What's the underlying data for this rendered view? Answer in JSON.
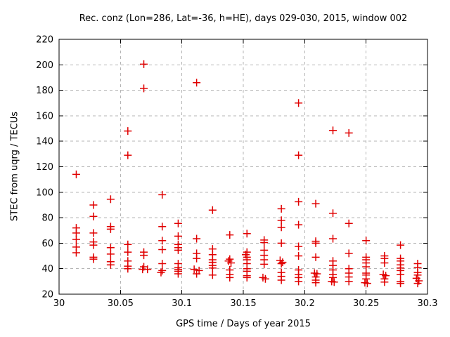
{
  "chart_data": {
    "type": "scatter",
    "title": "Rec. conz (Lon=286, Lat=-36, h=HE), days 029-030, 2015, window 002",
    "xlabel": "GPS time / Days of year 2015",
    "ylabel": "STEC from uqrg / TECUs",
    "xlim": [
      30,
      30.3
    ],
    "ylim": [
      20,
      220
    ],
    "xticks": {
      "values": [
        30,
        30.05,
        30.1,
        30.15,
        30.2,
        30.25,
        30.3
      ],
      "labels": [
        "30",
        "30.05",
        "30.1",
        "30.15",
        "30.2",
        "30.25",
        "30.3"
      ]
    },
    "yticks": {
      "values": [
        20,
        40,
        60,
        80,
        100,
        120,
        140,
        160,
        180,
        200,
        220
      ],
      "labels": [
        "20",
        "40",
        "60",
        "80",
        "100",
        "120",
        "140",
        "160",
        "180",
        "200",
        "220"
      ]
    },
    "grid": true,
    "legend": "none",
    "marker": {
      "shape": "plus",
      "color": "#e00000",
      "size": 11
    },
    "colors": {
      "marker": "#e00000",
      "grid": "#b4b4b4",
      "border": "#000000",
      "background": "#ffffff",
      "text": "#000000"
    },
    "points": [
      [
        30.014,
        114
      ],
      [
        30.014,
        72
      ],
      [
        30.014,
        68
      ],
      [
        30.014,
        63
      ],
      [
        30.014,
        57
      ],
      [
        30.014,
        52.5
      ],
      [
        30.028,
        90
      ],
      [
        30.028,
        81
      ],
      [
        30.028,
        68
      ],
      [
        30.028,
        61
      ],
      [
        30.028,
        58.5
      ],
      [
        30.028,
        49
      ],
      [
        30.028,
        47.5
      ],
      [
        30.042,
        94.5
      ],
      [
        30.042,
        73
      ],
      [
        30.042,
        71
      ],
      [
        30.042,
        56.5
      ],
      [
        30.042,
        51.5
      ],
      [
        30.042,
        45.5
      ],
      [
        30.042,
        43
      ],
      [
        30.056,
        148
      ],
      [
        30.056,
        129
      ],
      [
        30.056,
        59
      ],
      [
        30.056,
        53
      ],
      [
        30.056,
        46
      ],
      [
        30.056,
        42
      ],
      [
        30.056,
        40
      ],
      [
        30.069,
        200.5
      ],
      [
        30.069,
        181.5
      ],
      [
        30.069,
        53
      ],
      [
        30.069,
        50.5
      ],
      [
        30.069,
        41.5
      ],
      [
        30.068,
        39.5
      ],
      [
        30.072,
        39.5
      ],
      [
        30.084,
        98
      ],
      [
        30.084,
        73
      ],
      [
        30.084,
        62
      ],
      [
        30.084,
        55
      ],
      [
        30.084,
        44
      ],
      [
        30.084,
        38.5
      ],
      [
        30.083,
        37
      ],
      [
        30.097,
        75.5
      ],
      [
        30.097,
        65.5
      ],
      [
        30.097,
        59
      ],
      [
        30.097,
        56.5
      ],
      [
        30.097,
        54.5
      ],
      [
        30.097,
        44
      ],
      [
        30.097,
        41
      ],
      [
        30.097,
        39.5
      ],
      [
        30.097,
        38
      ],
      [
        30.097,
        36
      ],
      [
        30.112,
        186
      ],
      [
        30.112,
        63.5
      ],
      [
        30.112,
        52
      ],
      [
        30.112,
        48
      ],
      [
        30.11,
        39.5
      ],
      [
        30.114,
        38.5
      ],
      [
        30.112,
        36
      ],
      [
        30.125,
        86
      ],
      [
        30.125,
        55.5
      ],
      [
        30.125,
        51
      ],
      [
        30.125,
        47
      ],
      [
        30.125,
        45
      ],
      [
        30.125,
        42.5
      ],
      [
        30.125,
        40.5
      ],
      [
        30.125,
        35
      ],
      [
        30.139,
        66.5
      ],
      [
        30.139,
        47.5
      ],
      [
        30.138,
        46
      ],
      [
        30.14,
        44.5
      ],
      [
        30.139,
        39
      ],
      [
        30.139,
        35.5
      ],
      [
        30.139,
        33
      ],
      [
        30.153,
        67.5
      ],
      [
        30.153,
        53
      ],
      [
        30.152,
        51
      ],
      [
        30.153,
        49
      ],
      [
        30.153,
        47
      ],
      [
        30.153,
        44
      ],
      [
        30.153,
        40
      ],
      [
        30.153,
        38
      ],
      [
        30.153,
        34.5
      ],
      [
        30.153,
        33
      ],
      [
        30.167,
        62.5
      ],
      [
        30.167,
        60.5
      ],
      [
        30.167,
        54.5
      ],
      [
        30.167,
        50.5
      ],
      [
        30.167,
        47
      ],
      [
        30.167,
        43.5
      ],
      [
        30.166,
        33
      ],
      [
        30.168,
        32
      ],
      [
        30.181,
        87
      ],
      [
        30.181,
        78
      ],
      [
        30.181,
        72.5
      ],
      [
        30.181,
        60
      ],
      [
        30.18,
        46.5
      ],
      [
        30.182,
        45
      ],
      [
        30.181,
        44
      ],
      [
        30.181,
        37
      ],
      [
        30.181,
        34
      ],
      [
        30.181,
        31
      ],
      [
        30.195,
        170
      ],
      [
        30.195,
        129
      ],
      [
        30.195,
        92.5
      ],
      [
        30.195,
        74.5
      ],
      [
        30.195,
        57.5
      ],
      [
        30.195,
        50
      ],
      [
        30.195,
        39
      ],
      [
        30.195,
        35.5
      ],
      [
        30.195,
        33
      ],
      [
        30.195,
        30
      ],
      [
        30.209,
        91
      ],
      [
        30.209,
        61.5
      ],
      [
        30.209,
        60
      ],
      [
        30.209,
        49
      ],
      [
        30.208,
        36.5
      ],
      [
        30.21,
        36
      ],
      [
        30.209,
        33.5
      ],
      [
        30.209,
        31
      ],
      [
        30.209,
        29
      ],
      [
        30.223,
        148.5
      ],
      [
        30.223,
        83.5
      ],
      [
        30.223,
        63.5
      ],
      [
        30.223,
        46
      ],
      [
        30.223,
        42.5
      ],
      [
        30.223,
        39
      ],
      [
        30.223,
        35.5
      ],
      [
        30.223,
        33
      ],
      [
        30.222,
        30
      ],
      [
        30.224,
        29.5
      ],
      [
        30.236,
        146.5
      ],
      [
        30.236,
        75.5
      ],
      [
        30.236,
        52
      ],
      [
        30.236,
        40
      ],
      [
        30.236,
        36.5
      ],
      [
        30.236,
        33.5
      ],
      [
        30.236,
        30
      ],
      [
        30.25,
        62
      ],
      [
        30.25,
        49
      ],
      [
        30.25,
        47
      ],
      [
        30.25,
        44.5
      ],
      [
        30.25,
        41.5
      ],
      [
        30.25,
        36.5
      ],
      [
        30.25,
        35
      ],
      [
        30.25,
        32
      ],
      [
        30.249,
        29
      ],
      [
        30.251,
        28.5
      ],
      [
        30.265,
        50
      ],
      [
        30.265,
        48
      ],
      [
        30.265,
        44.5
      ],
      [
        30.264,
        35.5
      ],
      [
        30.266,
        34.5
      ],
      [
        30.265,
        32
      ],
      [
        30.265,
        29.5
      ],
      [
        30.278,
        58.5
      ],
      [
        30.278,
        48
      ],
      [
        30.278,
        46
      ],
      [
        30.278,
        43
      ],
      [
        30.278,
        40.5
      ],
      [
        30.278,
        38.5
      ],
      [
        30.278,
        35.5
      ],
      [
        30.278,
        30
      ],
      [
        30.278,
        28.5
      ],
      [
        30.292,
        44
      ],
      [
        30.292,
        41
      ],
      [
        30.292,
        37
      ],
      [
        30.292,
        35
      ],
      [
        30.291,
        32.5
      ],
      [
        30.293,
        30.5
      ],
      [
        30.292,
        28.5
      ]
    ]
  }
}
